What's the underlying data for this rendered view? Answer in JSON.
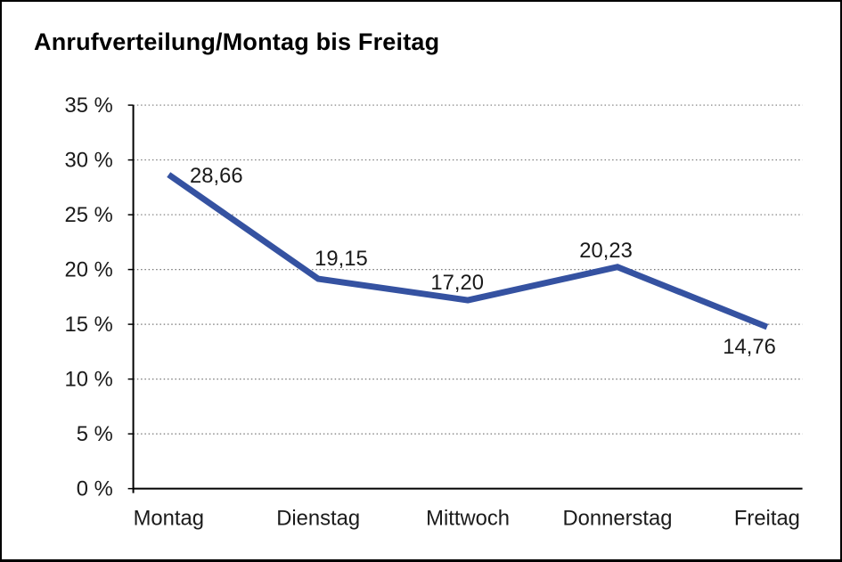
{
  "window": {
    "background": "#ffffff",
    "frame_border_color": "#000000"
  },
  "chart_data": {
    "type": "line",
    "title": "Anrufverteilung/Montag bis Freitag",
    "categories": [
      "Montag",
      "Dienstag",
      "Mittwoch",
      "Donnerstag",
      "Freitag"
    ],
    "values": [
      28.66,
      19.15,
      17.2,
      20.23,
      14.76
    ],
    "value_labels": [
      "28,66",
      "19,15",
      "17,20",
      "20,23",
      "14,76"
    ],
    "value_label_positions": [
      "right",
      "above",
      "above",
      "above",
      "below"
    ],
    "xlabel": "",
    "ylabel": "",
    "ylim": [
      0,
      35
    ],
    "y_tick_step": 5,
    "y_tick_labels": [
      "0 %",
      "5 %",
      "10 %",
      "15 %",
      "20 %",
      "25 %",
      "30 %",
      "35 %"
    ],
    "grid": "horizontal-dotted",
    "legend": "none",
    "colors": {
      "line": "#3552A1",
      "text": "#1A1A1A",
      "grid": "#777777",
      "axis": "#000000"
    }
  }
}
